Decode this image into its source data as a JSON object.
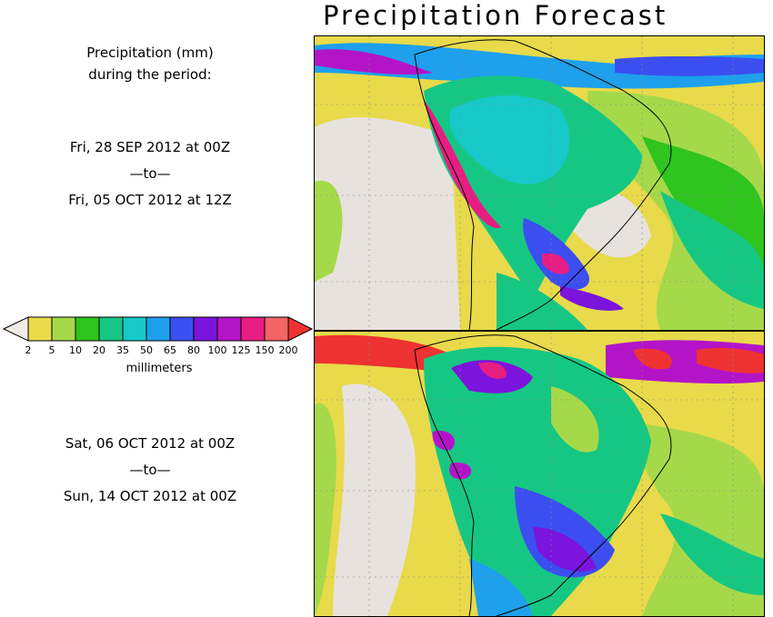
{
  "title": "Precipitation Forecast",
  "legend_header": {
    "line1": "Precipitation (mm)",
    "line2": "during the period:"
  },
  "period1": {
    "start": "Fri, 28 SEP 2012 at 00Z",
    "sep": "—to—",
    "end": "Fri, 05 OCT 2012 at 12Z"
  },
  "period2": {
    "start": "Sat, 06 OCT 2012 at 00Z",
    "sep": "—to—",
    "end": "Sun, 14 OCT 2012 at 00Z"
  },
  "colorbar": {
    "units": "millimeters",
    "ticks": [
      "2",
      "5",
      "10",
      "20",
      "35",
      "50",
      "65",
      "80",
      "100",
      "125",
      "150",
      "200"
    ],
    "colors": {
      "below": "#f2ece6",
      "c1": "#e8da4a",
      "c2": "#a6d94a",
      "c3": "#2fc41e",
      "c4": "#16c783",
      "c5": "#16c8c8",
      "c6": "#1ea0ec",
      "c7": "#3c4ef0",
      "c8": "#7b14dc",
      "c9": "#b414c8",
      "c10": "#e61e82",
      "c11": "#f56464",
      "above": "#ee3232"
    }
  }
}
